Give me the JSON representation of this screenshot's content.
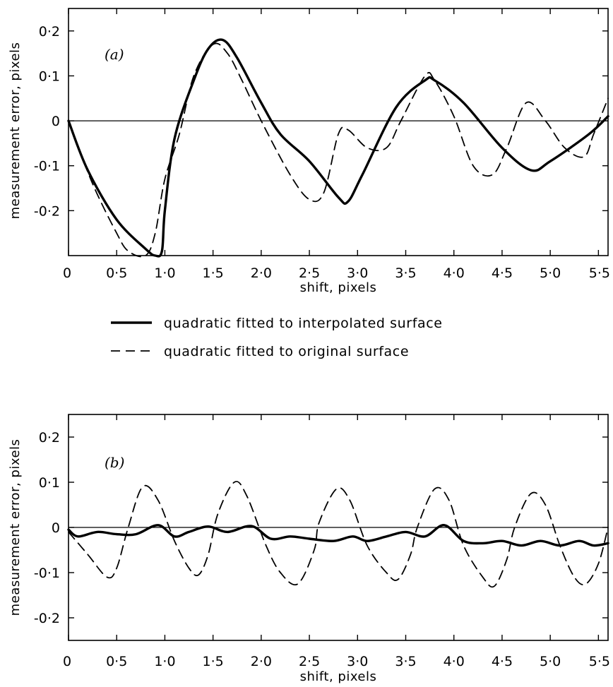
{
  "chart_data": [
    {
      "type": "line",
      "panel_label": "(a)",
      "xlabel": "shift, pixels",
      "ylabel": "measurement error, pixels",
      "xlim": [
        0,
        5.6
      ],
      "ylim": [
        -0.3,
        0.25
      ],
      "x_ticks": [
        "0",
        "0·5",
        "1·0",
        "1·5",
        "2·0",
        "2·5",
        "3·0",
        "3·5",
        "4·0",
        "4·5",
        "5·0",
        "5·5"
      ],
      "y_ticks": [
        "0·2",
        "0·1",
        "0",
        "-0·1",
        "-0·2"
      ],
      "grid": false,
      "zero_line": true,
      "series": [
        {
          "name": "quadratic fitted to interpolated surface",
          "style": "solid",
          "points": [
            [
              0,
              0
            ],
            [
              0.2,
              -0.11
            ],
            [
              0.5,
              -0.22
            ],
            [
              0.8,
              -0.285
            ],
            [
              0.9,
              -0.3
            ],
            [
              0.97,
              -0.29
            ],
            [
              1.0,
              -0.2
            ],
            [
              1.1,
              -0.04
            ],
            [
              1.3,
              0.09
            ],
            [
              1.45,
              0.16
            ],
            [
              1.6,
              0.18
            ],
            [
              1.75,
              0.14
            ],
            [
              2.0,
              0.04
            ],
            [
              2.2,
              -0.03
            ],
            [
              2.5,
              -0.09
            ],
            [
              2.8,
              -0.17
            ],
            [
              2.9,
              -0.18
            ],
            [
              3.05,
              -0.12
            ],
            [
              3.4,
              0.03
            ],
            [
              3.7,
              0.09
            ],
            [
              3.8,
              0.09
            ],
            [
              4.1,
              0.04
            ],
            [
              4.5,
              -0.06
            ],
            [
              4.8,
              -0.11
            ],
            [
              5.0,
              -0.09
            ],
            [
              5.4,
              -0.03
            ],
            [
              5.6,
              0.01
            ]
          ]
        },
        {
          "name": "quadratic fitted to original surface",
          "style": "dashed",
          "points": [
            [
              0,
              0
            ],
            [
              0.25,
              -0.14
            ],
            [
              0.5,
              -0.25
            ],
            [
              0.62,
              -0.29
            ],
            [
              0.8,
              -0.3
            ],
            [
              0.9,
              -0.25
            ],
            [
              1.0,
              -0.13
            ],
            [
              1.15,
              -0.03
            ],
            [
              1.3,
              0.1
            ],
            [
              1.5,
              0.17
            ],
            [
              1.65,
              0.15
            ],
            [
              1.8,
              0.09
            ],
            [
              2.0,
              0.0
            ],
            [
              2.3,
              -0.12
            ],
            [
              2.5,
              -0.175
            ],
            [
              2.65,
              -0.16
            ],
            [
              2.8,
              -0.03
            ],
            [
              2.9,
              -0.02
            ],
            [
              3.1,
              -0.06
            ],
            [
              3.3,
              -0.06
            ],
            [
              3.45,
              0.0
            ],
            [
              3.7,
              0.1
            ],
            [
              3.8,
              0.09
            ],
            [
              4.0,
              0.01
            ],
            [
              4.2,
              -0.1
            ],
            [
              4.4,
              -0.12
            ],
            [
              4.55,
              -0.06
            ],
            [
              4.75,
              0.04
            ],
            [
              4.95,
              0.0
            ],
            [
              5.15,
              -0.06
            ],
            [
              5.35,
              -0.08
            ],
            [
              5.45,
              -0.03
            ],
            [
              5.6,
              0.05
            ]
          ]
        }
      ]
    },
    {
      "type": "line",
      "panel_label": "(b)",
      "xlabel": "shift, pixels",
      "ylabel": "measurement error, pixels",
      "xlim": [
        0,
        5.6
      ],
      "ylim": [
        -0.25,
        0.25
      ],
      "x_ticks": [
        "0",
        "0·5",
        "1·0",
        "1·5",
        "2·0",
        "2·5",
        "3·0",
        "3·5",
        "4·0",
        "4·5",
        "5·0",
        "5·5"
      ],
      "y_ticks": [
        "0·2",
        "0·1",
        "0",
        "-0·1",
        "-0·2"
      ],
      "grid": false,
      "zero_line": true,
      "series": [
        {
          "name": "quadratic fitted to interpolated surface",
          "style": "solid",
          "points": [
            [
              0,
              -0.005
            ],
            [
              0.1,
              -0.02
            ],
            [
              0.3,
              -0.01
            ],
            [
              0.5,
              -0.015
            ],
            [
              0.7,
              -0.015
            ],
            [
              0.93,
              0.005
            ],
            [
              1.1,
              -0.02
            ],
            [
              1.25,
              -0.01
            ],
            [
              1.45,
              0.002
            ],
            [
              1.65,
              -0.01
            ],
            [
              1.9,
              0.003
            ],
            [
              2.1,
              -0.025
            ],
            [
              2.3,
              -0.02
            ],
            [
              2.5,
              -0.025
            ],
            [
              2.75,
              -0.03
            ],
            [
              2.95,
              -0.02
            ],
            [
              3.1,
              -0.03
            ],
            [
              3.3,
              -0.02
            ],
            [
              3.5,
              -0.01
            ],
            [
              3.7,
              -0.02
            ],
            [
              3.9,
              0.005
            ],
            [
              4.1,
              -0.03
            ],
            [
              4.3,
              -0.035
            ],
            [
              4.5,
              -0.03
            ],
            [
              4.7,
              -0.04
            ],
            [
              4.9,
              -0.03
            ],
            [
              5.1,
              -0.04
            ],
            [
              5.3,
              -0.03
            ],
            [
              5.45,
              -0.04
            ],
            [
              5.6,
              -0.035
            ]
          ]
        },
        {
          "name": "quadratic fitted to original surface",
          "style": "dashed",
          "points": [
            [
              0,
              -0.01
            ],
            [
              0.2,
              -0.06
            ],
            [
              0.4,
              -0.11
            ],
            [
              0.5,
              -0.09
            ],
            [
              0.62,
              0.0
            ],
            [
              0.77,
              0.09
            ],
            [
              0.93,
              0.06
            ],
            [
              1.1,
              -0.03
            ],
            [
              1.25,
              -0.09
            ],
            [
              1.35,
              -0.105
            ],
            [
              1.45,
              -0.06
            ],
            [
              1.55,
              0.03
            ],
            [
              1.72,
              0.1
            ],
            [
              1.85,
              0.07
            ],
            [
              2.05,
              -0.04
            ],
            [
              2.2,
              -0.1
            ],
            [
              2.38,
              -0.125
            ],
            [
              2.55,
              -0.05
            ],
            [
              2.6,
              0.01
            ],
            [
              2.78,
              0.085
            ],
            [
              2.92,
              0.06
            ],
            [
              3.1,
              -0.04
            ],
            [
              3.3,
              -0.1
            ],
            [
              3.42,
              -0.115
            ],
            [
              3.55,
              -0.06
            ],
            [
              3.62,
              0.0
            ],
            [
              3.8,
              0.085
            ],
            [
              3.95,
              0.06
            ],
            [
              4.1,
              -0.04
            ],
            [
              4.3,
              -0.11
            ],
            [
              4.42,
              -0.13
            ],
            [
              4.55,
              -0.07
            ],
            [
              4.63,
              0.0
            ],
            [
              4.8,
              0.075
            ],
            [
              4.95,
              0.05
            ],
            [
              5.1,
              -0.04
            ],
            [
              5.25,
              -0.11
            ],
            [
              5.37,
              -0.125
            ],
            [
              5.5,
              -0.08
            ],
            [
              5.6,
              0.0
            ]
          ]
        }
      ]
    }
  ],
  "legend": [
    {
      "label": "quadratic fitted to interpolated surface",
      "style": "solid"
    },
    {
      "label": "quadratic fitted to original surface",
      "style": "dashed"
    }
  ]
}
